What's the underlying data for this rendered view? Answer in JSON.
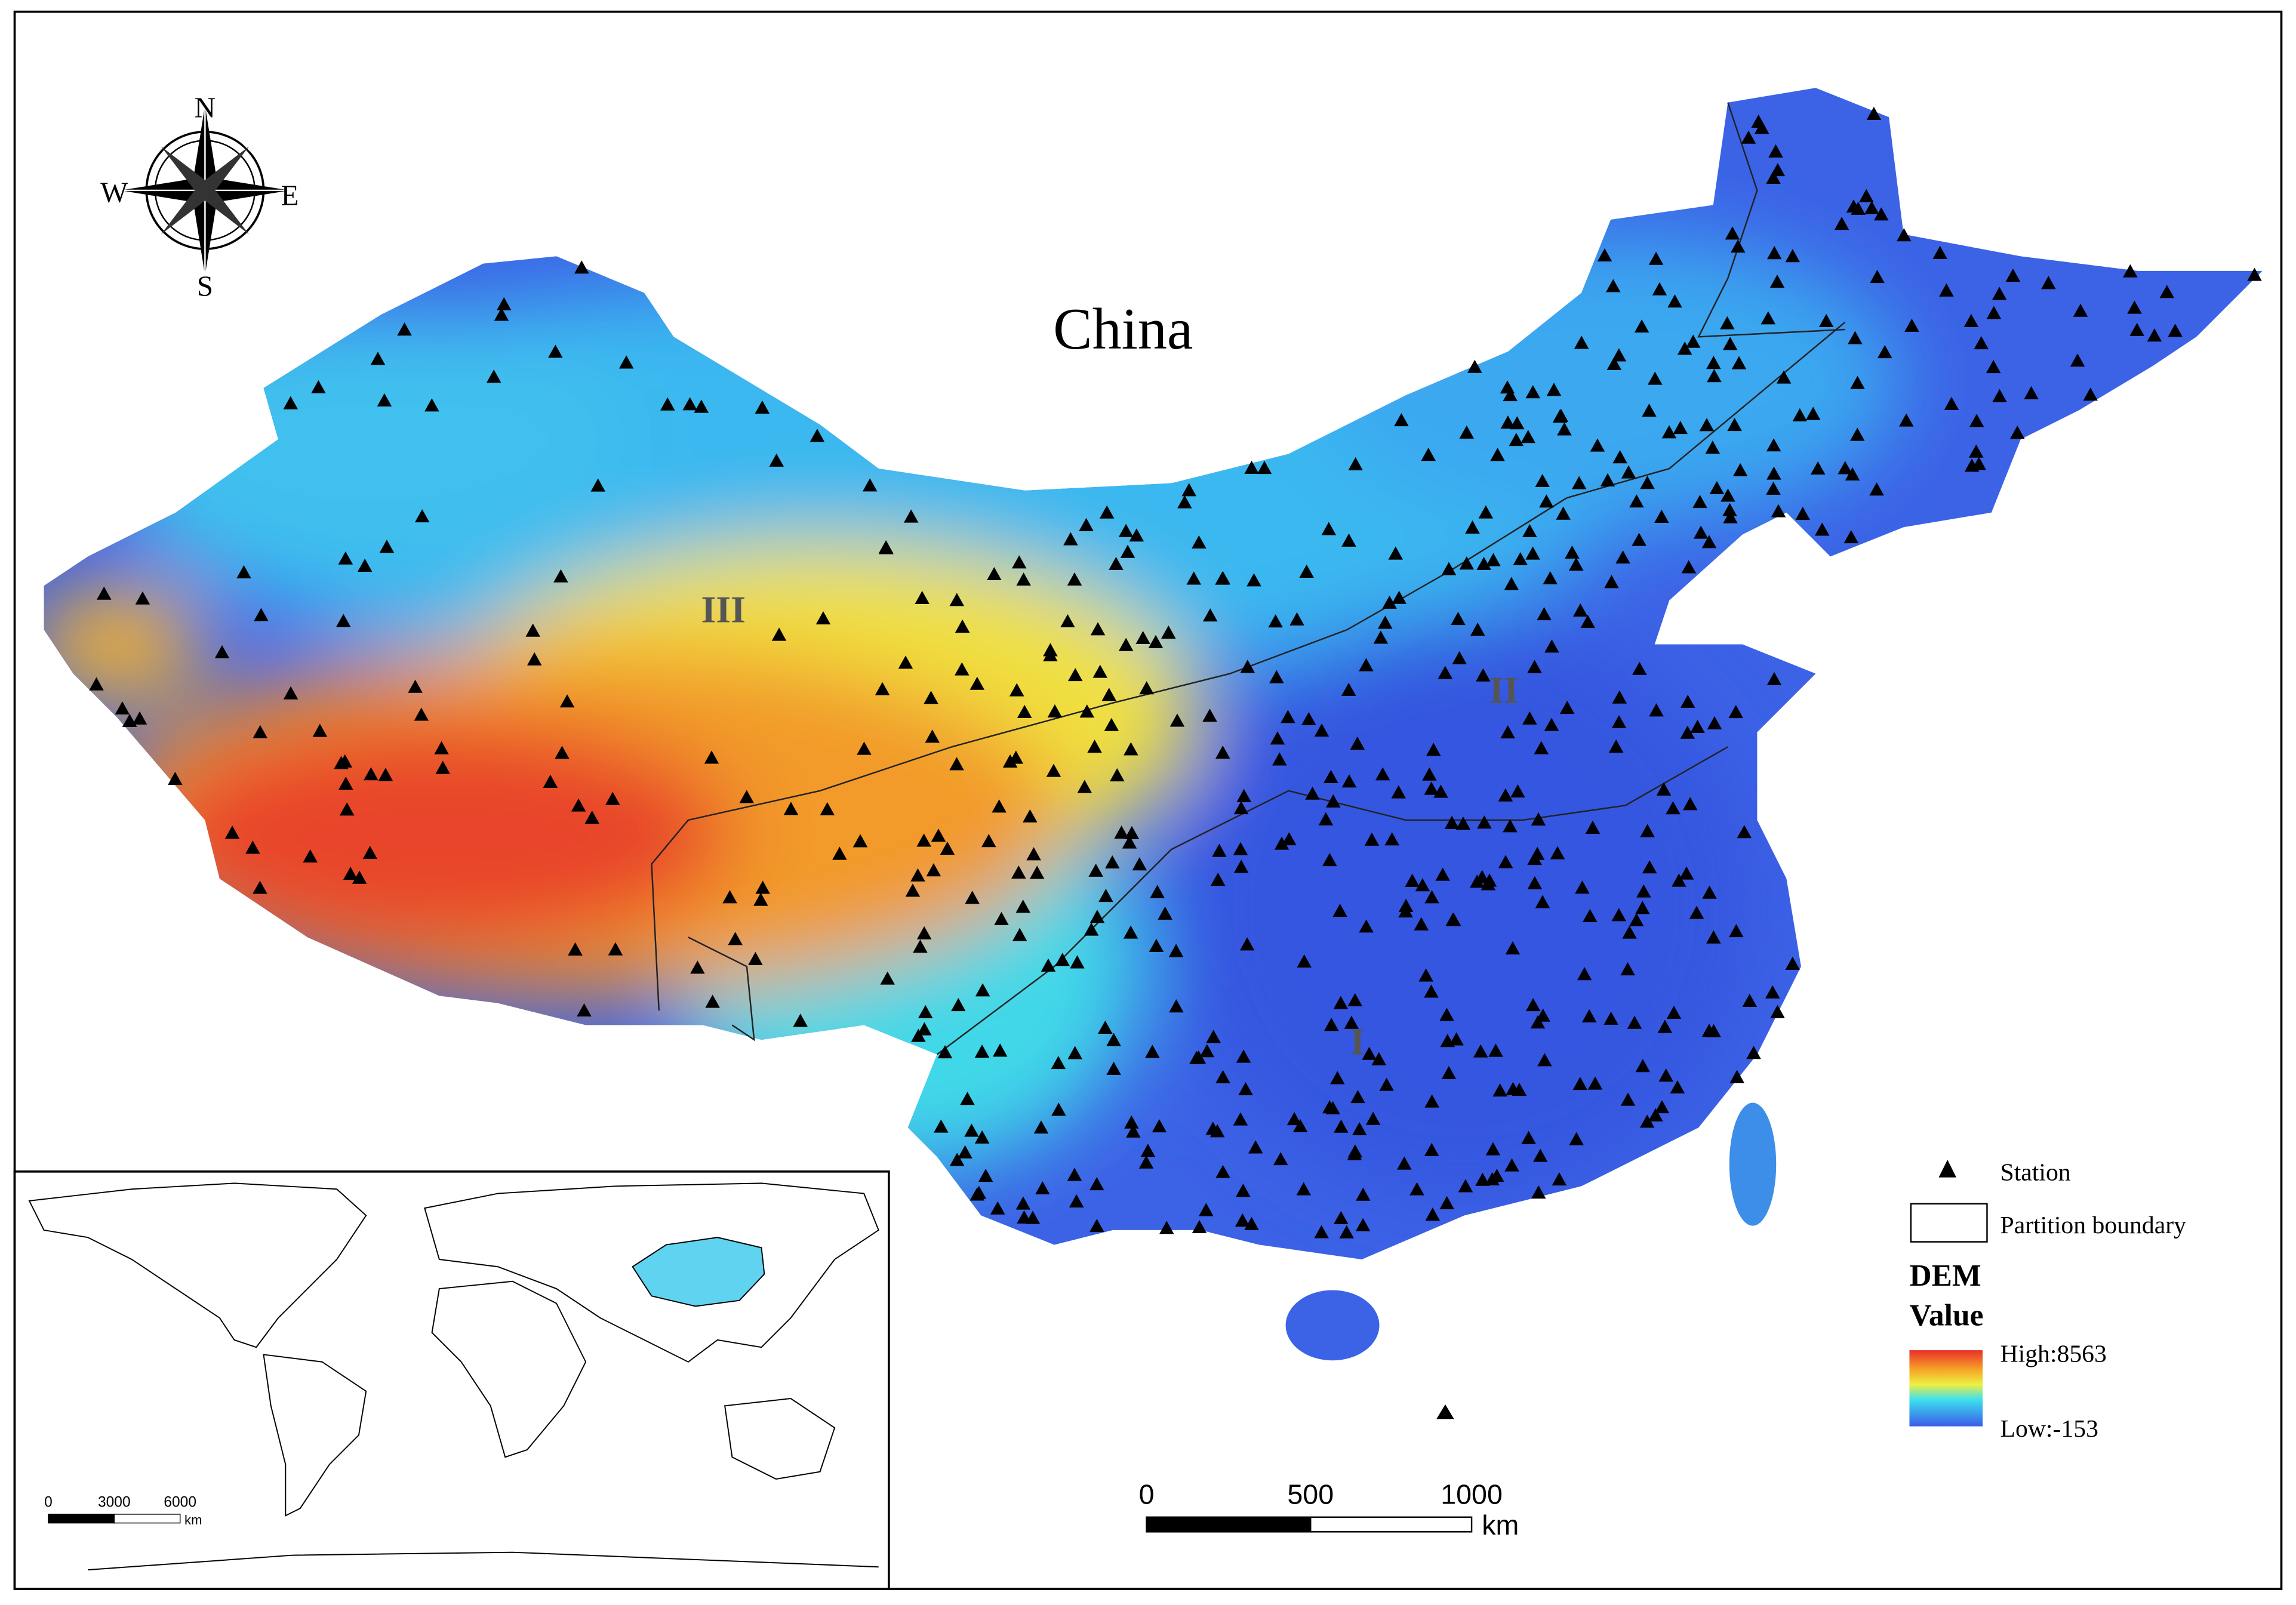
{
  "compass": {
    "north": "N",
    "south": "S",
    "west": "W",
    "east": "E"
  },
  "title": "China",
  "regions": [
    "III",
    "II",
    "I"
  ],
  "legend": {
    "station": "Station",
    "boundary": "Partition boundary",
    "dem_title": "DEM",
    "dem_subtitle": "Value",
    "high": "High:8563",
    "low": "Low:-153"
  },
  "scale_bar": {
    "labels": [
      "0",
      "500",
      "1000"
    ],
    "unit": "km"
  },
  "inset": {
    "scale_labels": [
      "0",
      "3000",
      "6000"
    ],
    "unit": "km"
  }
}
